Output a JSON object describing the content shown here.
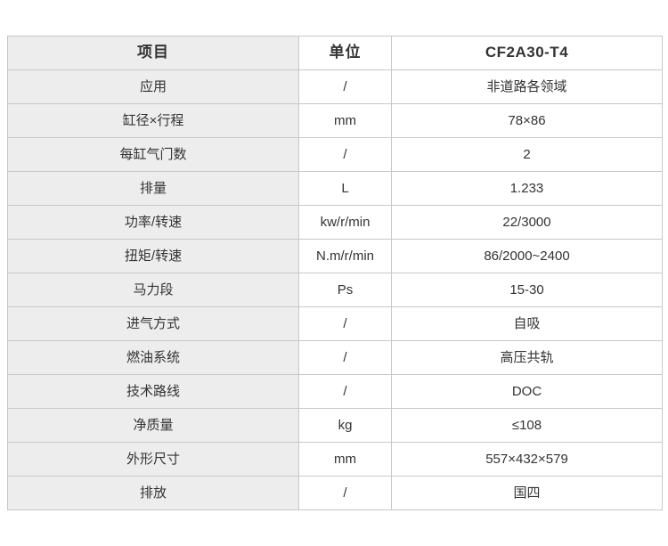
{
  "table": {
    "headers": {
      "item": "项目",
      "unit": "单位",
      "model": "CF2A30-T4"
    },
    "rows": [
      {
        "item": "应用",
        "unit": "/",
        "value": "非道路各领域"
      },
      {
        "item": "缸径×行程",
        "unit": "mm",
        "value": "78×86"
      },
      {
        "item": "每缸气门数",
        "unit": "/",
        "value": "2"
      },
      {
        "item": "排量",
        "unit": "L",
        "value": "1.233"
      },
      {
        "item": "功率/转速",
        "unit": "kw/r/min",
        "value": "22/3000"
      },
      {
        "item": "扭矩/转速",
        "unit": "N.m/r/min",
        "value": "86/2000~2400"
      },
      {
        "item": "马力段",
        "unit": "Ps",
        "value": "15-30"
      },
      {
        "item": "进气方式",
        "unit": "/",
        "value": "自吸"
      },
      {
        "item": "燃油系统",
        "unit": "/",
        "value": "高压共轨"
      },
      {
        "item": "技术路线",
        "unit": "/",
        "value": "DOC"
      },
      {
        "item": "净质量",
        "unit": "kg",
        "value": "≤108"
      },
      {
        "item": "外形尺寸",
        "unit": "mm",
        "value": "557×432×579"
      },
      {
        "item": "排放",
        "unit": "/",
        "value": "国四"
      }
    ]
  },
  "colors": {
    "label_column_bg": "#ededed",
    "border": "#c8c8c8",
    "text": "#333333",
    "page_bg": "#ffffff"
  }
}
